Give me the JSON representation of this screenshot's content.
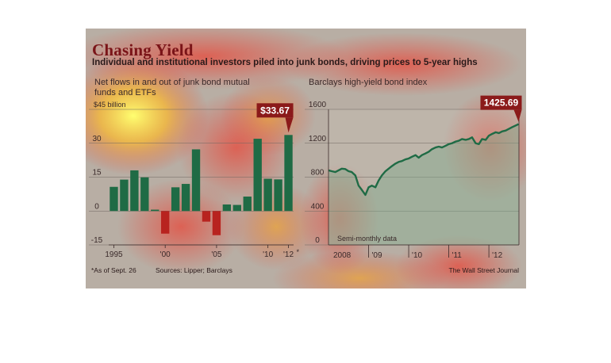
{
  "title": "Chasing Yield",
  "subtitle": "Individual and institutional investors piled into junk bonds, driving prices to 5-year highs",
  "footnote": "*As of Sept. 26",
  "sources": "Sources: Lipper; Barclays",
  "credit": "The Wall Street Journal",
  "colors": {
    "bar_positive": "#1f6b45",
    "bar_negative": "#b8231f",
    "line": "#1f6b45",
    "callout": "#8b1a1a",
    "title": "#7a1418"
  },
  "chart_data": [
    {
      "type": "bar",
      "title": "Net flows in and out of junk bond mutual funds and ETFs",
      "ylabel": "$45 billion",
      "ylim": [
        -15,
        45
      ],
      "yticks": [
        -15,
        0,
        15,
        30
      ],
      "x": [
        1995,
        1996,
        1997,
        1998,
        1999,
        2000,
        2001,
        2002,
        2003,
        2004,
        2005,
        2006,
        2007,
        2008,
        2009,
        2010,
        2011,
        2012
      ],
      "xtick_labels": [
        "1995",
        "'00",
        "'05",
        "'10",
        "'12"
      ],
      "xtick_years": [
        1995,
        2000,
        2005,
        2010,
        2012
      ],
      "values": [
        10.7,
        13.9,
        18.0,
        14.9,
        0.6,
        -10.0,
        10.5,
        12.0,
        27.3,
        -4.7,
        -10.7,
        2.9,
        2.7,
        6.4,
        32.0,
        14.3,
        14.0,
        33.67
      ],
      "callout": {
        "label": "$33.67",
        "year": 2012
      },
      "footnote_marker": "*",
      "grid": true
    },
    {
      "type": "area",
      "title": "Barclays high-yield bond index",
      "ylim": [
        0,
        1600
      ],
      "yticks": [
        0,
        400,
        800,
        1200,
        1600
      ],
      "xlim": [
        2008.0,
        2012.75
      ],
      "xtick_labels": [
        "2008",
        "'09",
        "'10",
        "'11",
        "'12"
      ],
      "xtick_years": [
        2008,
        2009,
        2010,
        2011,
        2012
      ],
      "annotation": "Semi-monthly data",
      "callout": {
        "label": "1425.69",
        "x": 2012.74,
        "y": 1425.69
      },
      "grid": true,
      "x": [
        2008.0,
        2008.08,
        2008.17,
        2008.25,
        2008.33,
        2008.42,
        2008.5,
        2008.58,
        2008.67,
        2008.75,
        2008.83,
        2008.92,
        2009.0,
        2009.08,
        2009.17,
        2009.25,
        2009.33,
        2009.42,
        2009.5,
        2009.58,
        2009.67,
        2009.75,
        2009.83,
        2009.92,
        2010.0,
        2010.08,
        2010.17,
        2010.25,
        2010.33,
        2010.42,
        2010.5,
        2010.58,
        2010.67,
        2010.75,
        2010.83,
        2010.92,
        2011.0,
        2011.08,
        2011.17,
        2011.25,
        2011.33,
        2011.42,
        2011.5,
        2011.58,
        2011.67,
        2011.75,
        2011.83,
        2011.92,
        2012.0,
        2012.08,
        2012.17,
        2012.25,
        2012.33,
        2012.42,
        2012.5,
        2012.58,
        2012.67,
        2012.74
      ],
      "y": [
        880,
        870,
        860,
        880,
        900,
        895,
        870,
        860,
        820,
        700,
        650,
        590,
        680,
        700,
        680,
        760,
        820,
        870,
        900,
        930,
        960,
        980,
        990,
        1010,
        1020,
        1040,
        1060,
        1030,
        1060,
        1080,
        1100,
        1130,
        1150,
        1160,
        1150,
        1170,
        1190,
        1200,
        1220,
        1230,
        1250,
        1240,
        1250,
        1270,
        1200,
        1190,
        1250,
        1240,
        1290,
        1310,
        1330,
        1320,
        1340,
        1350,
        1370,
        1390,
        1410,
        1425.69
      ]
    }
  ]
}
